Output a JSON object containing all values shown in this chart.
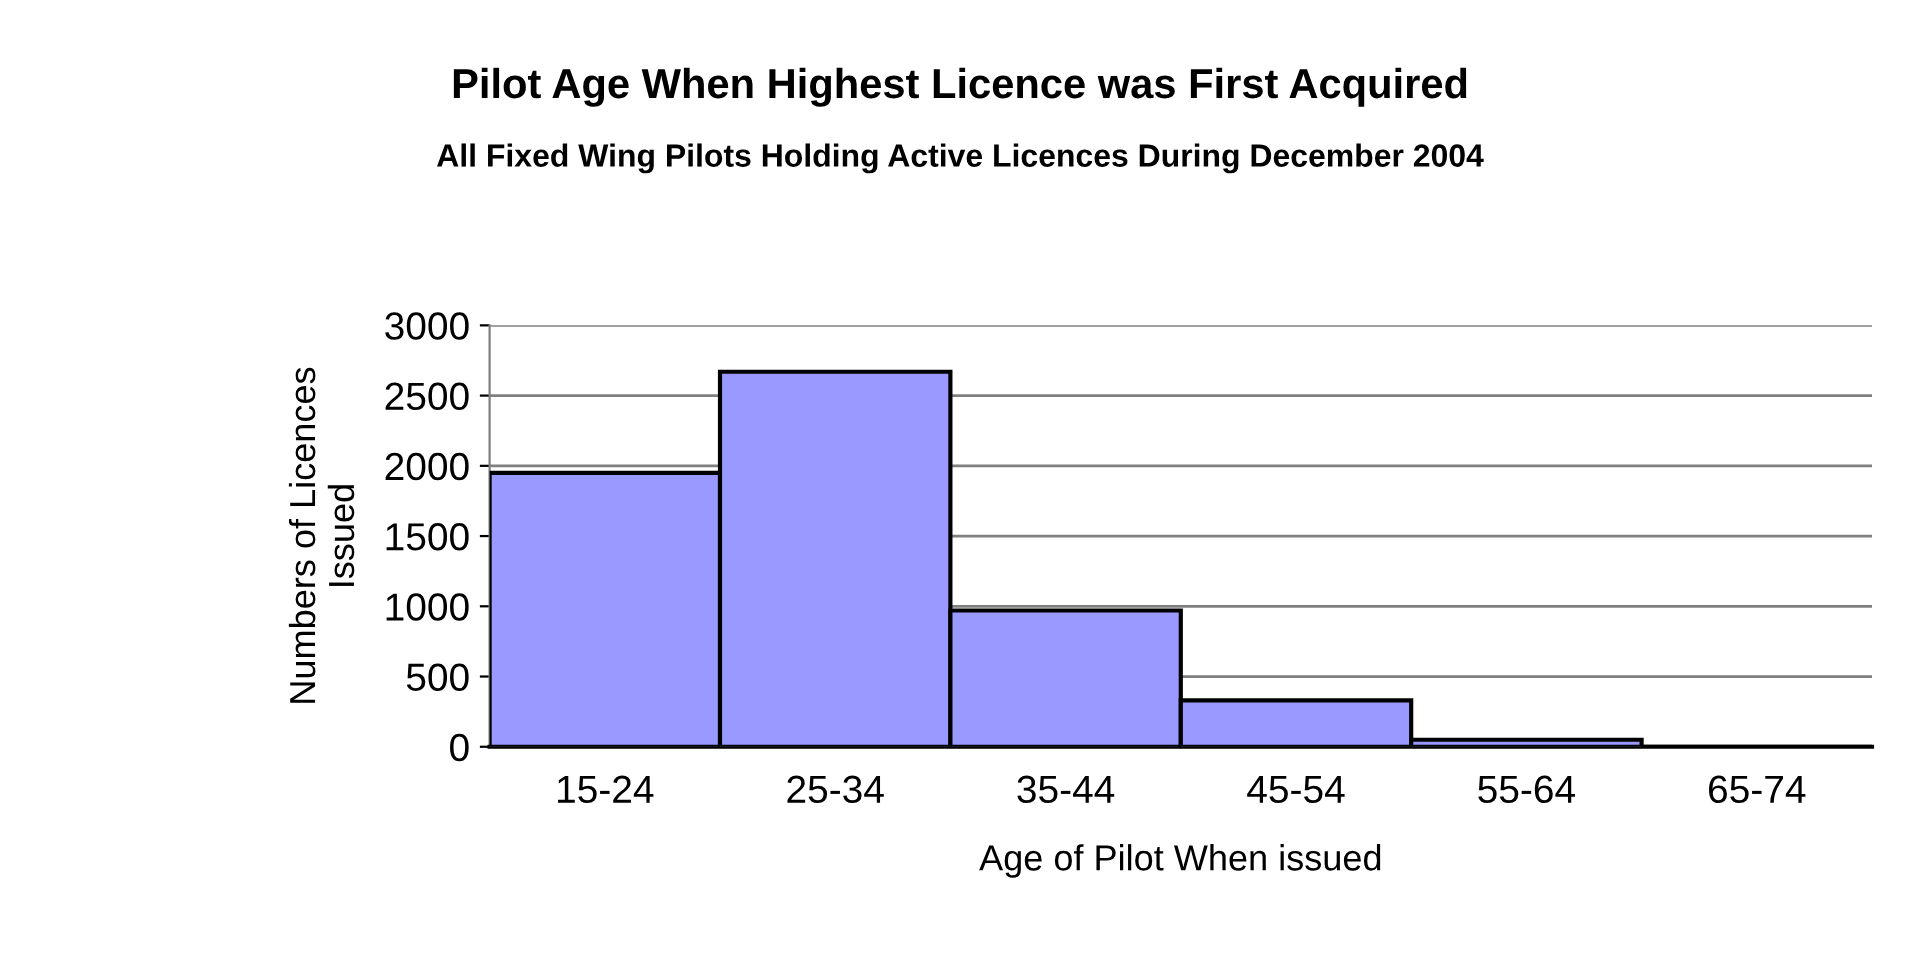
{
  "chart_data": {
    "type": "bar",
    "title": "Pilot Age When Highest Licence was First Acquired",
    "subtitle": "All Fixed Wing Pilots Holding Active Licences During December 2004",
    "xlabel": "Age of Pilot When issued",
    "ylabel": "Numbers of Licences\nIssued",
    "categories": [
      "15-24",
      "25-34",
      "35-44",
      "45-54",
      "55-64",
      "65-74"
    ],
    "values": [
      1950,
      2670,
      970,
      330,
      50,
      0
    ],
    "color": "#9999ff",
    "ylim": [
      0,
      3000
    ],
    "yticks": [
      0,
      500,
      1000,
      1500,
      2000,
      2500,
      3000
    ],
    "grid": "y",
    "legend": false
  }
}
